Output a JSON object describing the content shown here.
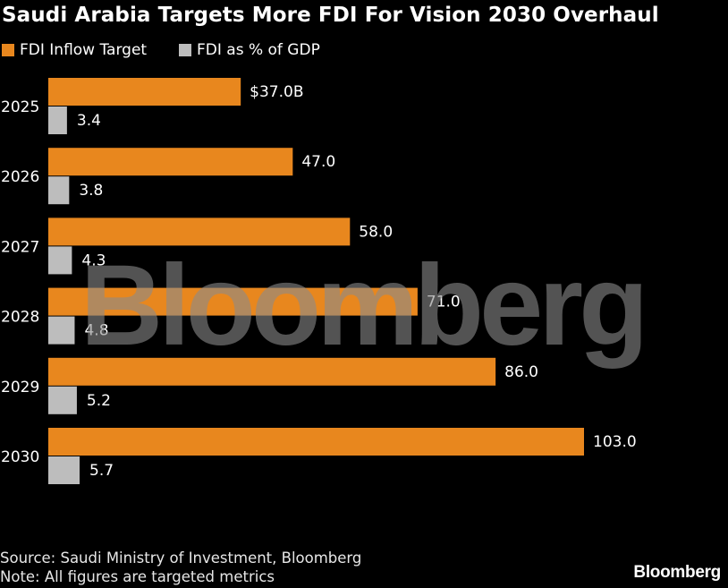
{
  "header": {
    "title": "Saudi Arabia Targets More FDI For Vision 2030 Overhaul"
  },
  "legend": [
    {
      "label": "FDI Inflow Target",
      "color": "#E8871E"
    },
    {
      "label": "FDI as % of GDP",
      "color": "#BDBDBD"
    }
  ],
  "chart_data": {
    "type": "bar",
    "orientation": "horizontal",
    "title": "Saudi Arabia Targets More FDI For Vision 2030 Overhaul",
    "categories": [
      "2025",
      "2026",
      "2027",
      "2028",
      "2029",
      "2030"
    ],
    "series": [
      {
        "name": "FDI Inflow Target",
        "color": "#E8871E",
        "values": [
          37.0,
          47.0,
          58.0,
          71.0,
          86.0,
          103.0
        ],
        "labels": [
          "$37.0B",
          "47.0",
          "58.0",
          "71.0",
          "86.0",
          "103.0"
        ]
      },
      {
        "name": "FDI as % of GDP",
        "color": "#BDBDBD",
        "values": [
          3.4,
          3.8,
          4.3,
          4.8,
          5.2,
          5.7
        ],
        "labels": [
          "3.4",
          "3.8",
          "4.3",
          "4.8",
          "5.2",
          "5.7"
        ]
      }
    ],
    "legend_position": "top-left",
    "grid": false
  },
  "watermark": "Bloomberg",
  "footer": {
    "source": "Source: Saudi Ministry of Investment, Bloomberg",
    "note": "Note: All figures are targeted metrics",
    "brand": "Bloomberg"
  }
}
